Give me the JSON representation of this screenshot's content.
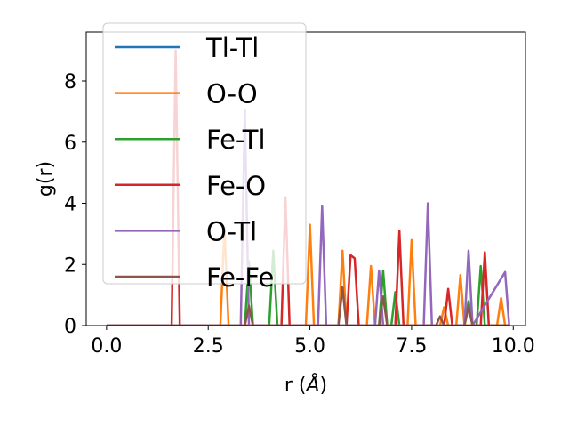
{
  "chart_data": {
    "type": "line",
    "xlabel_prefix": "r (",
    "xlabel_unit": "Å",
    "xlabel_suffix": ")",
    "ylabel": "g(r)",
    "xlim": [
      -0.5,
      10.3
    ],
    "ylim": [
      0,
      9.6
    ],
    "xticks": [
      0.0,
      2.5,
      5.0,
      7.5,
      10.0
    ],
    "xtick_labels": [
      "0.0",
      "2.5",
      "5.0",
      "7.5",
      "10.0"
    ],
    "yticks": [
      0,
      2,
      4,
      6,
      8
    ],
    "ytick_labels": [
      "0",
      "2",
      "4",
      "6",
      "8"
    ],
    "grid": false,
    "legend_position": "upper-left",
    "series": [
      {
        "name": "Tl-Tl",
        "color": "#1f77b4",
        "x": [
          0.0,
          9.9
        ],
        "y": [
          0.0,
          0.0
        ]
      },
      {
        "name": "O-O",
        "color": "#ff7f0e",
        "x": [
          0.0,
          2.8,
          2.9,
          3.0,
          4.9,
          5.0,
          5.1,
          5.7,
          5.8,
          5.9,
          6.4,
          6.5,
          6.6,
          7.4,
          7.5,
          7.6,
          8.2,
          8.3,
          8.4,
          8.6,
          8.7,
          8.8,
          9.6,
          9.7,
          9.8,
          9.9
        ],
        "y": [
          0.0,
          0.0,
          3.2,
          0.0,
          0.0,
          3.3,
          0.0,
          0.0,
          2.45,
          0.0,
          0.0,
          1.95,
          0.0,
          0.0,
          2.8,
          0.0,
          0.0,
          0.6,
          0.0,
          0.0,
          1.65,
          0.0,
          0.0,
          0.9,
          0.0,
          0.0
        ]
      },
      {
        "name": "Fe-Tl",
        "color": "#2ca02c",
        "x": [
          0.0,
          3.4,
          3.5,
          3.6,
          4.0,
          4.1,
          4.2,
          6.7,
          6.8,
          6.9,
          7.0,
          7.1,
          7.2,
          8.8,
          8.9,
          9.0,
          9.1,
          9.2,
          9.3,
          9.9
        ],
        "y": [
          0.0,
          0.0,
          2.1,
          0.0,
          0.0,
          2.45,
          0.0,
          0.0,
          1.8,
          0.0,
          0.0,
          1.1,
          0.0,
          0.0,
          0.8,
          0.0,
          0.0,
          1.95,
          0.0,
          0.0
        ]
      },
      {
        "name": "Fe-O",
        "color": "#d62728",
        "x": [
          0.0,
          1.6,
          1.7,
          1.8,
          4.3,
          4.4,
          4.5,
          5.9,
          6.0,
          6.1,
          6.2,
          7.1,
          7.2,
          7.3,
          8.3,
          8.4,
          8.5,
          9.2,
          9.3,
          9.4,
          9.9
        ],
        "y": [
          0.0,
          0.0,
          9.0,
          0.0,
          0.0,
          4.2,
          0.0,
          0.0,
          2.3,
          2.2,
          0.0,
          0.0,
          3.1,
          0.0,
          0.0,
          1.2,
          0.0,
          0.0,
          2.4,
          0.0,
          0.0
        ]
      },
      {
        "name": "O-Tl",
        "color": "#9467bd",
        "x": [
          0.0,
          3.3,
          3.4,
          3.5,
          5.2,
          5.3,
          5.4,
          6.6,
          6.7,
          6.8,
          7.8,
          7.9,
          8.0,
          8.8,
          8.9,
          9.0,
          9.8,
          9.9
        ],
        "y": [
          0.0,
          0.0,
          7.05,
          0.0,
          0.0,
          3.9,
          0.0,
          0.0,
          1.8,
          0.0,
          0.0,
          4.0,
          0.0,
          0.0,
          2.45,
          0.0,
          1.75,
          0.0
        ]
      },
      {
        "name": "Fe-Fe",
        "color": "#8c564b",
        "x": [
          0.0,
          3.4,
          3.5,
          3.6,
          5.7,
          5.8,
          5.9,
          6.7,
          6.8,
          6.9,
          8.1,
          8.2,
          8.3,
          8.8,
          8.9,
          9.0,
          9.9
        ],
        "y": [
          0.0,
          0.0,
          0.65,
          0.0,
          0.0,
          1.25,
          0.0,
          0.0,
          0.95,
          0.0,
          0.0,
          0.3,
          0.0,
          0.0,
          0.6,
          0.0,
          0.0
        ]
      }
    ]
  }
}
